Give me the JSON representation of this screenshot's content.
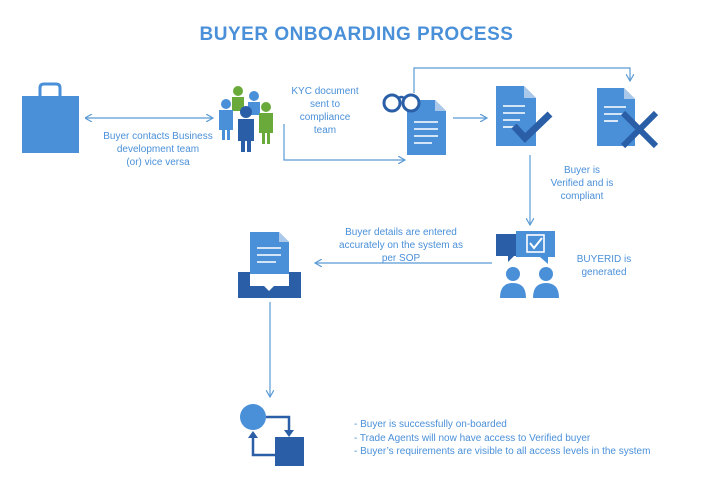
{
  "title": "BUYER ONBOARDING PROCESS",
  "labels": {
    "buyer_contact": [
      "Buyer contacts Business",
      "development team",
      "(or) vice versa"
    ],
    "kyc": [
      "KYC document",
      "sent to",
      "compliance",
      "team"
    ],
    "verified": [
      "Buyer is",
      "Verified and is",
      "compliant"
    ],
    "details": [
      "Buyer details are entered",
      "accurately on the system as",
      "per SOP"
    ],
    "buyerid": [
      "BUYERID is",
      "generated"
    ]
  },
  "outcomes": [
    "- Buyer is successfully on-boarded",
    "- Trade Agents will now have access to Verified buyer",
    "- Buyer’s requirements are visible to all access levels in the system"
  ],
  "icons": [
    "shopping-bag-icon",
    "team-group-icon",
    "glasses-document-icon",
    "document-check-icon",
    "document-reject-icon",
    "chat-verification-icon",
    "inbox-download-icon",
    "workflow-cycle-icon"
  ],
  "colors": {
    "primary": "#4a90d9",
    "dark": "#2a5fa8",
    "green": "#6aaa3a",
    "line": "#5b9bd5"
  }
}
